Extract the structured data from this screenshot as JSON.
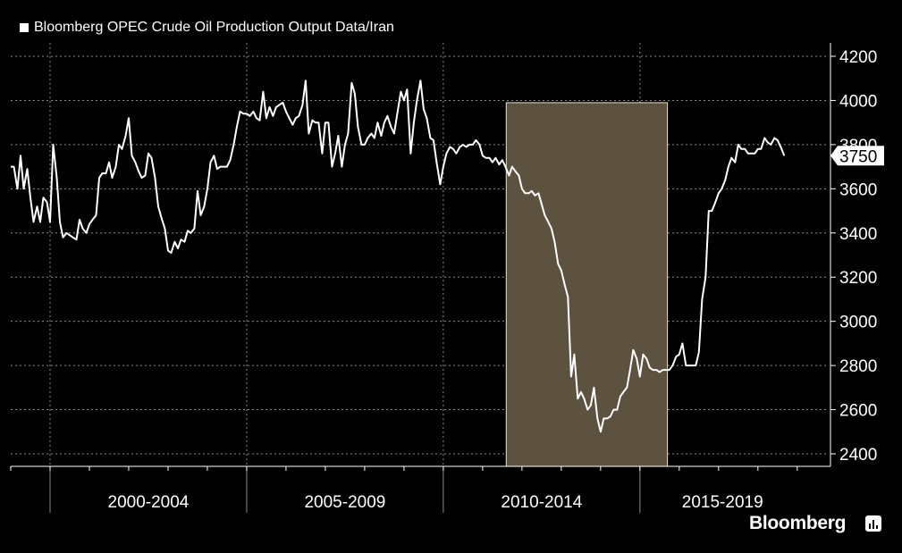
{
  "legend": {
    "label": "Bloomberg OPEC Crude Oil Production Output Data/Iran"
  },
  "brand": "Bloomberg",
  "colors": {
    "background": "#000000",
    "line": "#ffffff",
    "highlight": "#5d5140",
    "highlight_border": "#e8dfd0",
    "grid": "#8a8a8a"
  },
  "chart_data": {
    "type": "line",
    "x_tick_labels": [
      "2000-2004",
      "2005-2009",
      "2010-2014",
      "2015-2019"
    ],
    "y_ticks": [
      2400,
      2600,
      2800,
      3000,
      3200,
      3400,
      3600,
      3800,
      4000,
      4200
    ],
    "ylim": [
      2350,
      4250
    ],
    "xlim": [
      1999.0,
      2019.8
    ],
    "y_axis_side": "right",
    "grid": true,
    "last_value_label": "3750",
    "highlight_range": {
      "x": [
        2011.6,
        2015.7
      ],
      "y": [
        2350,
        3990
      ]
    },
    "series": [
      {
        "values": [
          [
            1999.0,
            3700
          ],
          [
            1999.08,
            3700
          ],
          [
            1999.17,
            3600
          ],
          [
            1999.25,
            3750
          ],
          [
            1999.33,
            3600
          ],
          [
            1999.42,
            3690
          ],
          [
            1999.5,
            3560
          ],
          [
            1999.58,
            3450
          ],
          [
            1999.67,
            3520
          ],
          [
            1999.75,
            3450
          ],
          [
            1999.83,
            3560
          ],
          [
            1999.92,
            3540
          ],
          [
            2000.0,
            3450
          ],
          [
            2000.08,
            3800
          ],
          [
            2000.17,
            3650
          ],
          [
            2000.25,
            3450
          ],
          [
            2000.33,
            3380
          ],
          [
            2000.42,
            3400
          ],
          [
            2000.5,
            3390
          ],
          [
            2000.58,
            3380
          ],
          [
            2000.67,
            3370
          ],
          [
            2000.75,
            3460
          ],
          [
            2000.83,
            3420
          ],
          [
            2000.92,
            3400
          ],
          [
            2001.0,
            3440
          ],
          [
            2001.08,
            3460
          ],
          [
            2001.17,
            3480
          ],
          [
            2001.25,
            3650
          ],
          [
            2001.33,
            3670
          ],
          [
            2001.42,
            3670
          ],
          [
            2001.5,
            3720
          ],
          [
            2001.58,
            3650
          ],
          [
            2001.67,
            3700
          ],
          [
            2001.75,
            3800
          ],
          [
            2001.83,
            3780
          ],
          [
            2001.92,
            3840
          ],
          [
            2002.0,
            3920
          ],
          [
            2002.08,
            3750
          ],
          [
            2002.17,
            3720
          ],
          [
            2002.25,
            3680
          ],
          [
            2002.33,
            3650
          ],
          [
            2002.42,
            3660
          ],
          [
            2002.5,
            3760
          ],
          [
            2002.58,
            3740
          ],
          [
            2002.67,
            3650
          ],
          [
            2002.75,
            3520
          ],
          [
            2002.83,
            3470
          ],
          [
            2002.92,
            3420
          ],
          [
            2003.0,
            3320
          ],
          [
            2003.08,
            3310
          ],
          [
            2003.17,
            3360
          ],
          [
            2003.25,
            3330
          ],
          [
            2003.33,
            3370
          ],
          [
            2003.42,
            3360
          ],
          [
            2003.5,
            3410
          ],
          [
            2003.58,
            3400
          ],
          [
            2003.67,
            3420
          ],
          [
            2003.75,
            3590
          ],
          [
            2003.83,
            3480
          ],
          [
            2003.92,
            3520
          ],
          [
            2004.0,
            3600
          ],
          [
            2004.08,
            3720
          ],
          [
            2004.17,
            3750
          ],
          [
            2004.25,
            3690
          ],
          [
            2004.33,
            3700
          ],
          [
            2004.42,
            3700
          ],
          [
            2004.5,
            3700
          ],
          [
            2004.58,
            3730
          ],
          [
            2004.67,
            3800
          ],
          [
            2004.75,
            3880
          ],
          [
            2004.83,
            3950
          ],
          [
            2004.92,
            3940
          ],
          [
            2005.0,
            3940
          ],
          [
            2005.08,
            3930
          ],
          [
            2005.17,
            3950
          ],
          [
            2005.25,
            3920
          ],
          [
            2005.33,
            3910
          ],
          [
            2005.42,
            4040
          ],
          [
            2005.5,
            3920
          ],
          [
            2005.58,
            3970
          ],
          [
            2005.67,
            3930
          ],
          [
            2005.75,
            3970
          ],
          [
            2005.83,
            3980
          ],
          [
            2005.92,
            3990
          ],
          [
            2006.0,
            3950
          ],
          [
            2006.08,
            3920
          ],
          [
            2006.17,
            3890
          ],
          [
            2006.25,
            3920
          ],
          [
            2006.33,
            3930
          ],
          [
            2006.42,
            3980
          ],
          [
            2006.5,
            4090
          ],
          [
            2006.58,
            3850
          ],
          [
            2006.67,
            3910
          ],
          [
            2006.75,
            3900
          ],
          [
            2006.83,
            3900
          ],
          [
            2006.92,
            3760
          ],
          [
            2007.0,
            3900
          ],
          [
            2007.08,
            3900
          ],
          [
            2007.17,
            3700
          ],
          [
            2007.25,
            3760
          ],
          [
            2007.33,
            3840
          ],
          [
            2007.42,
            3700
          ],
          [
            2007.5,
            3800
          ],
          [
            2007.58,
            3850
          ],
          [
            2007.67,
            4080
          ],
          [
            2007.75,
            4030
          ],
          [
            2007.83,
            3880
          ],
          [
            2007.92,
            3800
          ],
          [
            2008.0,
            3800
          ],
          [
            2008.08,
            3830
          ],
          [
            2008.17,
            3850
          ],
          [
            2008.25,
            3830
          ],
          [
            2008.33,
            3900
          ],
          [
            2008.42,
            3840
          ],
          [
            2008.5,
            3900
          ],
          [
            2008.58,
            3930
          ],
          [
            2008.67,
            3880
          ],
          [
            2008.75,
            3850
          ],
          [
            2008.83,
            3940
          ],
          [
            2008.92,
            4040
          ],
          [
            2009.0,
            4000
          ],
          [
            2009.08,
            4050
          ],
          [
            2009.17,
            3760
          ],
          [
            2009.25,
            3900
          ],
          [
            2009.33,
            4000
          ],
          [
            2009.42,
            4090
          ],
          [
            2009.5,
            3960
          ],
          [
            2009.58,
            3920
          ],
          [
            2009.67,
            3830
          ],
          [
            2009.75,
            3820
          ],
          [
            2009.83,
            3720
          ],
          [
            2009.92,
            3620
          ],
          [
            2010.0,
            3700
          ],
          [
            2010.08,
            3760
          ],
          [
            2010.17,
            3790
          ],
          [
            2010.25,
            3780
          ],
          [
            2010.33,
            3760
          ],
          [
            2010.42,
            3790
          ],
          [
            2010.5,
            3800
          ],
          [
            2010.58,
            3790
          ],
          [
            2010.67,
            3800
          ],
          [
            2010.75,
            3800
          ],
          [
            2010.83,
            3820
          ],
          [
            2010.92,
            3800
          ],
          [
            2011.0,
            3750
          ],
          [
            2011.08,
            3740
          ],
          [
            2011.17,
            3740
          ],
          [
            2011.25,
            3720
          ],
          [
            2011.33,
            3740
          ],
          [
            2011.42,
            3710
          ],
          [
            2011.5,
            3730
          ],
          [
            2011.58,
            3700
          ],
          [
            2011.67,
            3660
          ],
          [
            2011.75,
            3700
          ],
          [
            2011.83,
            3680
          ],
          [
            2011.92,
            3660
          ],
          [
            2012.0,
            3600
          ],
          [
            2012.08,
            3580
          ],
          [
            2012.17,
            3580
          ],
          [
            2012.25,
            3590
          ],
          [
            2012.33,
            3570
          ],
          [
            2012.42,
            3580
          ],
          [
            2012.5,
            3530
          ],
          [
            2012.58,
            3480
          ],
          [
            2012.67,
            3450
          ],
          [
            2012.75,
            3420
          ],
          [
            2012.83,
            3360
          ],
          [
            2012.92,
            3260
          ],
          [
            2013.0,
            3230
          ],
          [
            2013.08,
            3170
          ],
          [
            2013.17,
            3110
          ],
          [
            2013.25,
            2750
          ],
          [
            2013.33,
            2850
          ],
          [
            2013.42,
            2650
          ],
          [
            2013.5,
            2680
          ],
          [
            2013.58,
            2650
          ],
          [
            2013.67,
            2600
          ],
          [
            2013.75,
            2620
          ],
          [
            2013.83,
            2700
          ],
          [
            2013.92,
            2560
          ],
          [
            2014.0,
            2500
          ],
          [
            2014.08,
            2560
          ],
          [
            2014.17,
            2560
          ],
          [
            2014.25,
            2570
          ],
          [
            2014.33,
            2600
          ],
          [
            2014.42,
            2600
          ],
          [
            2014.5,
            2660
          ],
          [
            2014.58,
            2680
          ],
          [
            2014.67,
            2700
          ],
          [
            2014.75,
            2780
          ],
          [
            2014.83,
            2870
          ],
          [
            2014.92,
            2830
          ],
          [
            2015.0,
            2750
          ],
          [
            2015.08,
            2850
          ],
          [
            2015.17,
            2830
          ],
          [
            2015.25,
            2790
          ],
          [
            2015.33,
            2780
          ],
          [
            2015.42,
            2780
          ],
          [
            2015.5,
            2770
          ],
          [
            2015.58,
            2780
          ],
          [
            2015.67,
            2780
          ],
          [
            2015.75,
            2780
          ],
          [
            2015.83,
            2800
          ],
          [
            2015.92,
            2840
          ],
          [
            2016.0,
            2850
          ],
          [
            2016.08,
            2900
          ],
          [
            2016.17,
            2800
          ],
          [
            2016.25,
            2800
          ],
          [
            2016.33,
            2800
          ],
          [
            2016.42,
            2800
          ],
          [
            2016.5,
            2860
          ],
          [
            2016.58,
            3100
          ],
          [
            2016.67,
            3200
          ],
          [
            2016.75,
            3500
          ],
          [
            2016.83,
            3500
          ],
          [
            2016.92,
            3540
          ],
          [
            2017.0,
            3580
          ],
          [
            2017.08,
            3600
          ],
          [
            2017.17,
            3640
          ],
          [
            2017.25,
            3700
          ],
          [
            2017.33,
            3740
          ],
          [
            2017.42,
            3720
          ],
          [
            2017.5,
            3800
          ],
          [
            2017.58,
            3780
          ],
          [
            2017.67,
            3780
          ],
          [
            2017.75,
            3760
          ],
          [
            2017.83,
            3760
          ],
          [
            2017.92,
            3760
          ],
          [
            2018.0,
            3780
          ],
          [
            2018.08,
            3780
          ],
          [
            2018.17,
            3830
          ],
          [
            2018.25,
            3810
          ],
          [
            2018.33,
            3800
          ],
          [
            2018.42,
            3830
          ],
          [
            2018.5,
            3820
          ],
          [
            2018.58,
            3790
          ],
          [
            2018.67,
            3750
          ]
        ]
      }
    ]
  }
}
